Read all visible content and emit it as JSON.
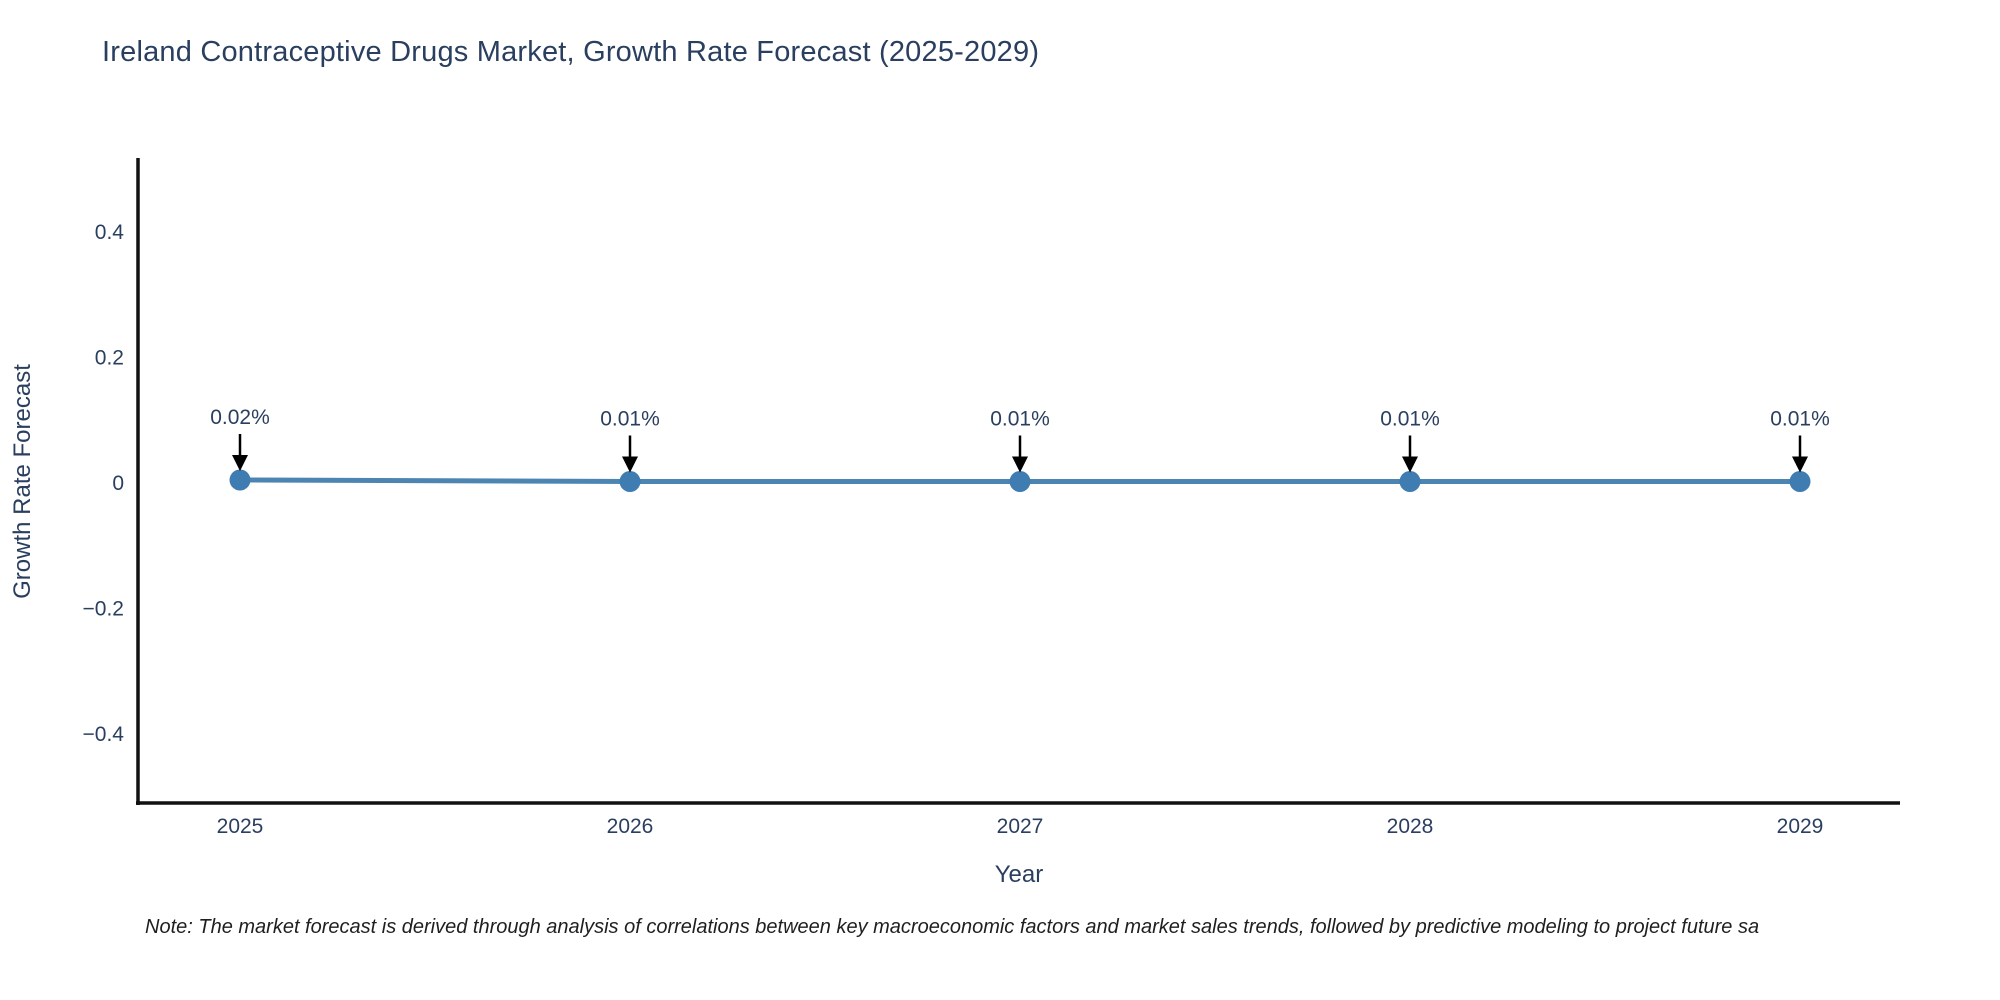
{
  "title": "Ireland Contraceptive Drugs Market, Growth Rate Forecast (2025-2029)",
  "note": "Note: The market forecast is derived through analysis of correlations between key macroeconomic factors and market sales trends, followed by predictive modeling to project future sa",
  "colors": {
    "line": "#4d85b2",
    "marker": "#3e7cb1",
    "axis": "#111111",
    "text": "#2a3f5f",
    "annotation_arrow": "#000000"
  },
  "chart_data": {
    "type": "line",
    "title": "Ireland Contraceptive Drugs Market, Growth Rate Forecast (2025-2029)",
    "x": [
      2025,
      2026,
      2027,
      2028,
      2029
    ],
    "xtick_labels": [
      "2025",
      "2026",
      "2027",
      "2028",
      "2029"
    ],
    "series": [
      {
        "name": "Growth Rate Forecast",
        "values": [
          0.02,
          0.01,
          0.01,
          0.01,
          0.01
        ]
      }
    ],
    "point_labels": [
      "0.02%",
      "0.01%",
      "0.01%",
      "0.01%",
      "0.01%"
    ],
    "xlabel": "Year",
    "ylabel": "Growth Rate Forecast",
    "ylim": [
      -0.5,
      0.52
    ],
    "yticks": [
      0.4,
      0.2,
      0,
      -0.2,
      -0.4
    ],
    "ytick_labels": [
      "0.4",
      "0.2",
      "0",
      "−0.2",
      "−0.4"
    ],
    "grid": false,
    "legend": false,
    "annotations_arrow": true
  }
}
